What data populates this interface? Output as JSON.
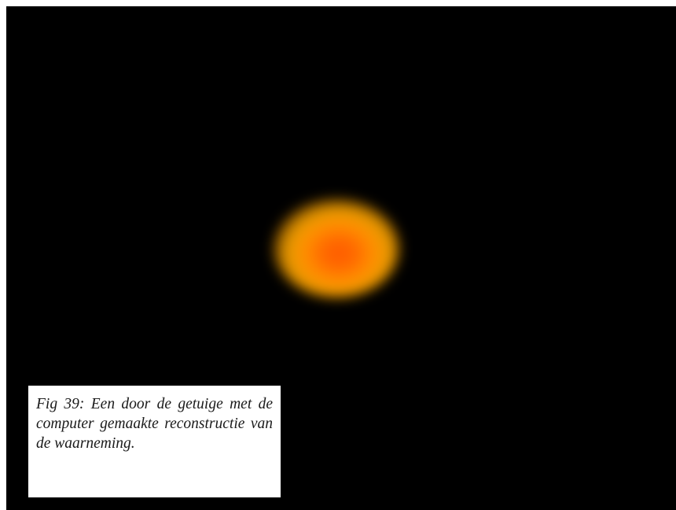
{
  "figure": {
    "caption": "Fig 39: Een door de getuige met de computer gemaakte reconstructie van de waarneming."
  }
}
